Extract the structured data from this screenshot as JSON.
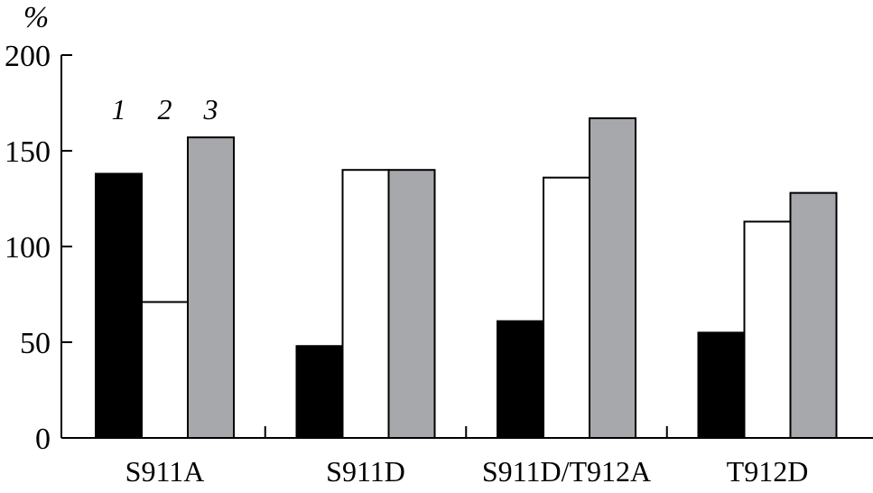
{
  "chart_data": {
    "type": "bar",
    "title": "",
    "xlabel": "",
    "ylabel": "%",
    "ylim": [
      0,
      200
    ],
    "yticks": [
      0,
      50,
      100,
      150,
      200
    ],
    "categories": [
      "S911A",
      "S911D",
      "S911D/T912A",
      "T912D"
    ],
    "series": [
      {
        "name": "1",
        "color": "#000000",
        "values": [
          138,
          48,
          61,
          55
        ]
      },
      {
        "name": "2",
        "color": "#ffffff",
        "values": [
          71,
          140,
          136,
          113
        ]
      },
      {
        "name": "3",
        "color": "#a7a8ab",
        "values": [
          157,
          140,
          167,
          128
        ]
      }
    ],
    "legend": {
      "placement": "above first group",
      "style": "italic numerals"
    },
    "grid": false
  }
}
